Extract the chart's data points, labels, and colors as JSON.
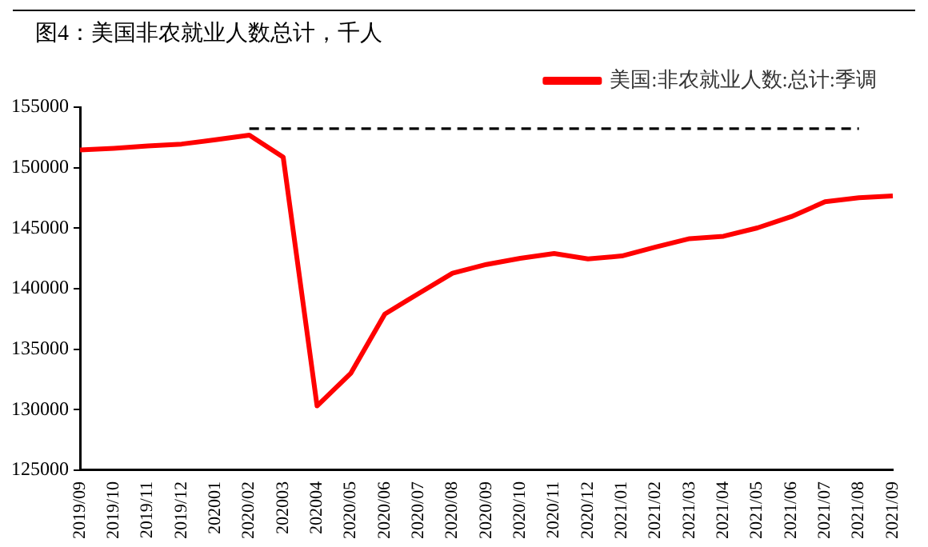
{
  "chart_data": {
    "type": "line",
    "title": "图4：美国非农就业人数总计，千人",
    "categories": [
      "2019/09",
      "2019/10",
      "2019/11",
      "2019/12",
      "202001",
      "2020/02",
      "202003",
      "202004",
      "2020/05",
      "2020/06",
      "2020/07",
      "2020/08",
      "2020/09",
      "2020/10",
      "2020/11",
      "2020/12",
      "2021/01",
      "2021/02",
      "2021/03",
      "2021/04",
      "2021/05",
      "2021/06",
      "2021/07",
      "2021/08",
      "2021/09"
    ],
    "series": [
      {
        "name": "美国:非农就业人数:总计:季调",
        "color": "#ff0000",
        "line_style": "solid",
        "values": [
          151460,
          151600,
          151800,
          151950,
          152300,
          152690,
          150870,
          130310,
          133020,
          137900,
          139600,
          141280,
          142000,
          142510,
          142900,
          142460,
          142700,
          143440,
          144130,
          144330,
          145020,
          145950,
          147180,
          147520,
          147670
        ]
      },
      {
        "color": "#000000",
        "line_style": "dashed",
        "values": [
          null,
          null,
          null,
          null,
          null,
          153230,
          153230,
          153230,
          153230,
          153230,
          153230,
          153230,
          153230,
          153230,
          153230,
          153230,
          153230,
          153230,
          153230,
          153230,
          153230,
          153230,
          153230,
          153230,
          null
        ]
      }
    ],
    "ylim": [
      125000,
      155000
    ],
    "yticks": [
      125000,
      130000,
      135000,
      140000,
      145000,
      150000,
      155000
    ],
    "grid": false,
    "legend": "top right",
    "marker": "none"
  }
}
